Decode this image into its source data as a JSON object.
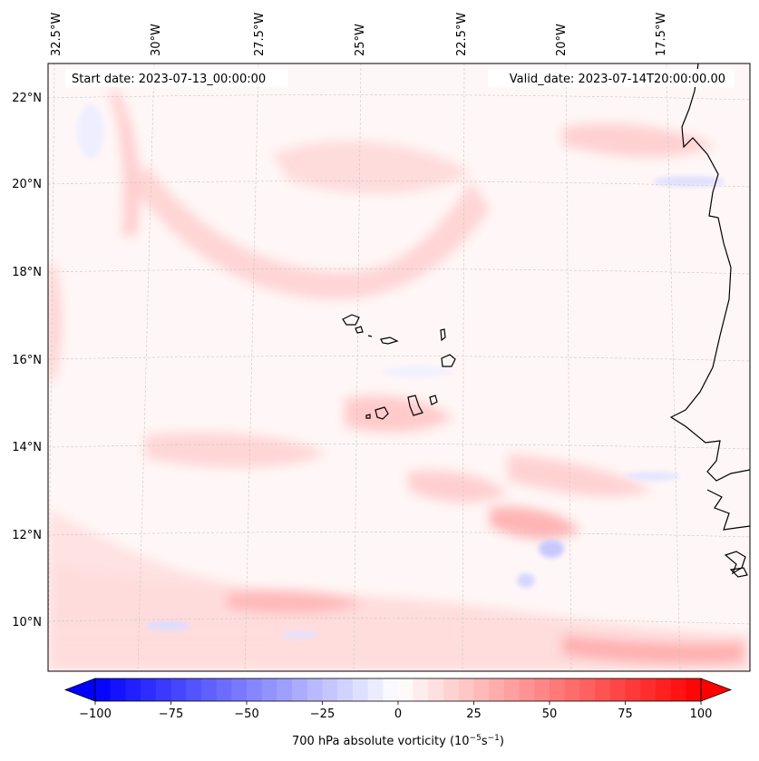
{
  "header": {
    "start_date": "Start date: 2023-07-13_00:00:00",
    "valid_date": "Valid_date: 2023-07-14T20:00:00.00"
  },
  "map": {
    "lon_labels": [
      "32.5°W",
      "30°W",
      "27.5°W",
      "25°W",
      "22.5°W",
      "20°W",
      "17.5°W"
    ],
    "lat_labels": [
      "22°N",
      "20°N",
      "18°N",
      "16°N",
      "14°N",
      "12°N",
      "10°N"
    ],
    "gridlines": true
  },
  "colorbar": {
    "ticks": [
      "−100",
      "−75",
      "−50",
      "−25",
      "0",
      "25",
      "50",
      "75",
      "100"
    ],
    "label_main": "700 hPa absolute vorticity (10",
    "label_exp1": "−5",
    "label_mid": "s",
    "label_exp2": "−1",
    "label_end": ")",
    "low_color": "#0000ff",
    "mid_color": "#ffffff",
    "high_color": "#ff0000"
  }
}
